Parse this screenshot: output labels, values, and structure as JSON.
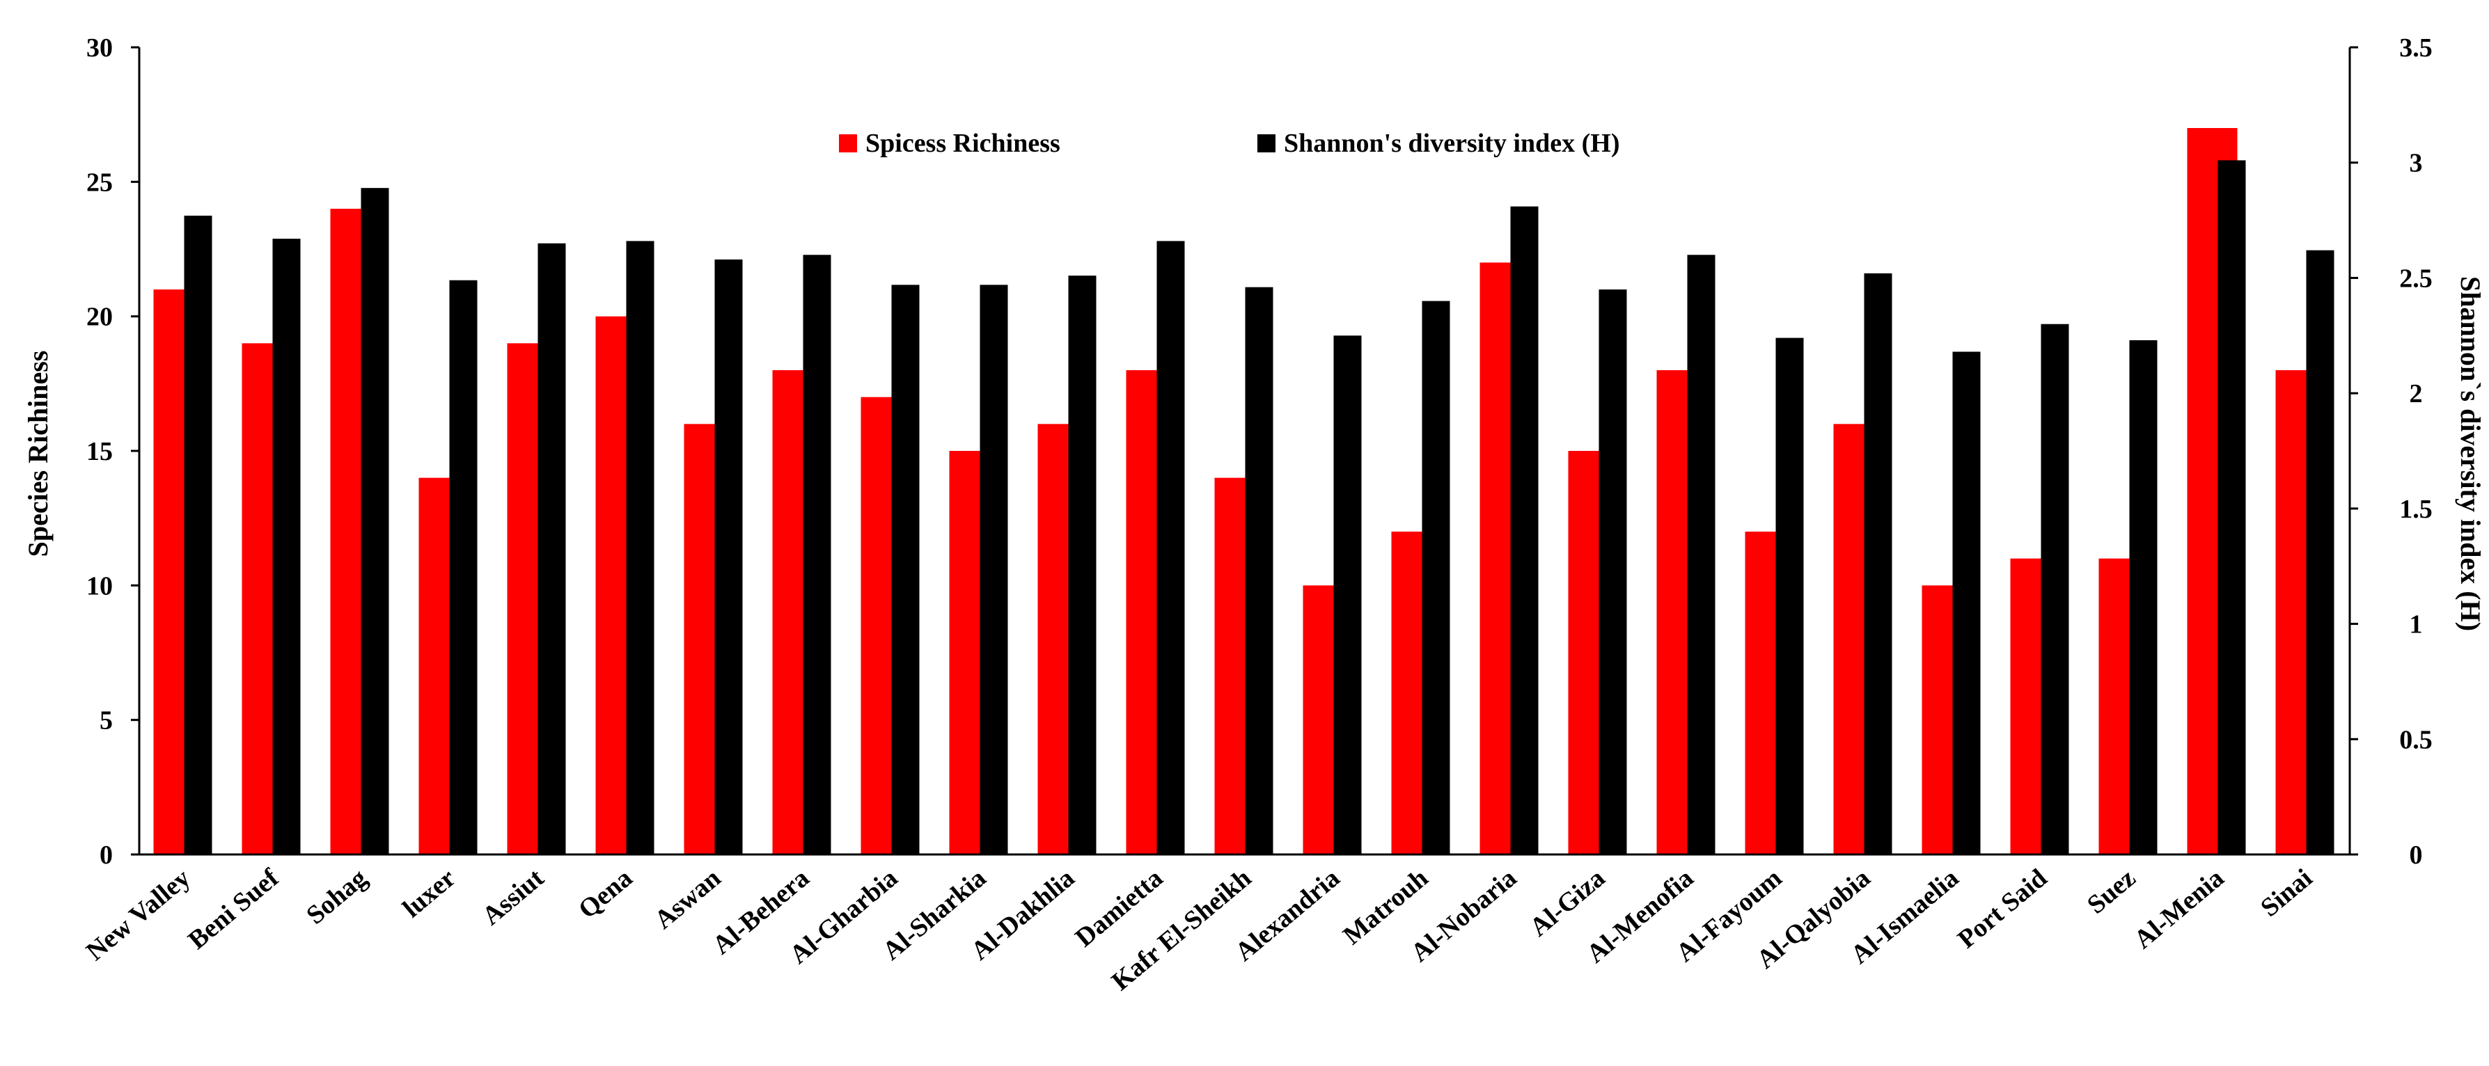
{
  "chart_data": {
    "type": "bar",
    "categories": [
      "New Valley",
      "Beni Suef",
      "Sohag",
      "luxer",
      "Assiut",
      "Qena",
      "Aswan",
      "Al-Behera",
      "Al-Gharbia",
      "Al-Sharkia",
      "Al-Dakhlia",
      "Damietta",
      "Kafr El-Sheikh",
      "Alexandria",
      "Matrouh",
      "Al-Nobaria",
      "Al-Giza",
      "Al-Menofia",
      "Al-Fayoum",
      "Al-Qalyobia",
      "Al-Ismaelia",
      "Port Said",
      "Suez",
      "Al-Menia",
      "Sinai"
    ],
    "series": [
      {
        "name": "Spicess Richiness",
        "axis": "left",
        "color": "#ff0000",
        "values": [
          21,
          19,
          24,
          14,
          19,
          20,
          16,
          18,
          17,
          15,
          16,
          18,
          14,
          10,
          12,
          22,
          15,
          18,
          12,
          16,
          10,
          11,
          11,
          27,
          18
        ]
      },
      {
        "name": "Shannon's diversity index (H)",
        "axis": "right",
        "color": "#000000",
        "values": [
          2.77,
          2.67,
          2.89,
          2.49,
          2.65,
          2.66,
          2.58,
          2.6,
          2.47,
          2.47,
          2.51,
          2.66,
          2.46,
          2.25,
          2.4,
          2.81,
          2.45,
          2.6,
          2.24,
          2.52,
          2.18,
          2.3,
          2.23,
          3.01,
          2.62
        ]
      }
    ],
    "ylabel": "Species Richiness",
    "y2label": "Shannon`s diversity index (H)",
    "ylim": [
      0,
      30
    ],
    "y2lim": [
      0,
      3.5
    ],
    "yticks": [
      "0",
      "5",
      "10",
      "15",
      "20",
      "25",
      "30"
    ],
    "y2ticks": [
      "0",
      "0.5",
      "1",
      "1.5",
      "2",
      "2.5",
      "3",
      "3.5"
    ],
    "legend_position": "top-center",
    "grid": false
  }
}
